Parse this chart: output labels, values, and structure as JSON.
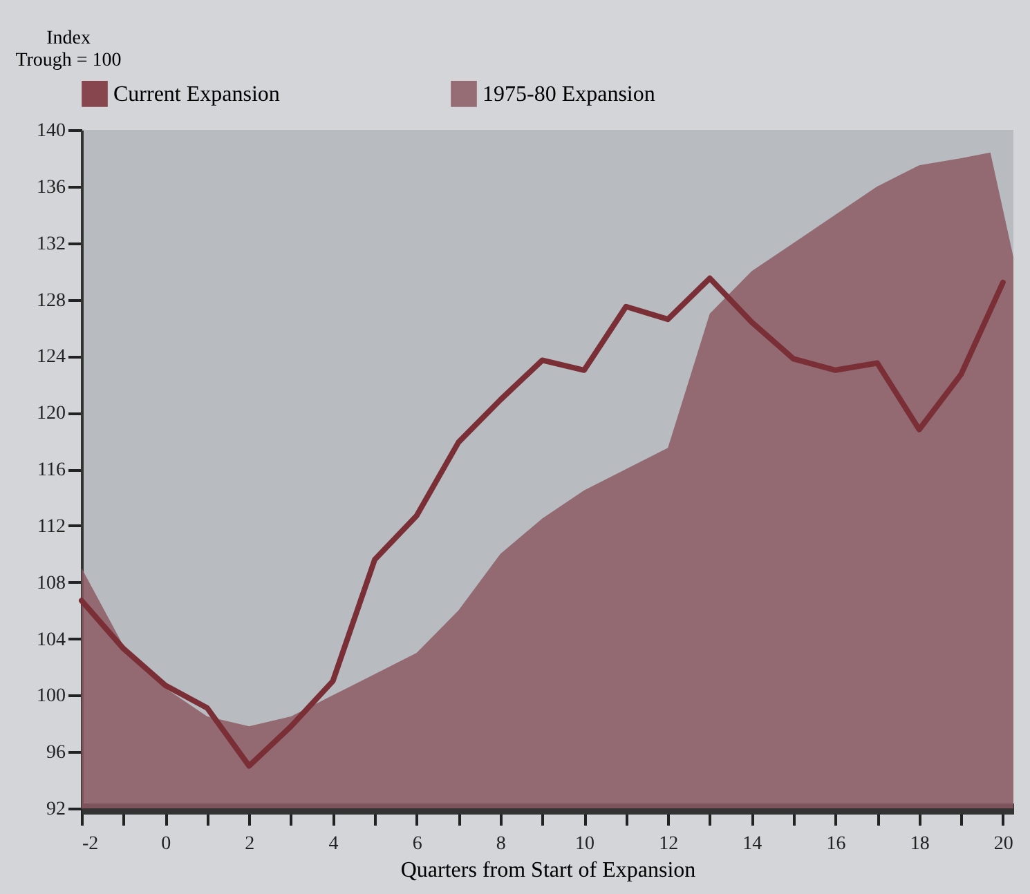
{
  "chart_data": {
    "type": "line",
    "xlabel": "Quarters from Start of Expansion",
    "ylabel": "Index\nTrough = 100",
    "x": [
      -2,
      -1,
      0,
      1,
      2,
      3,
      4,
      5,
      6,
      7,
      8,
      9,
      10,
      11,
      12,
      13,
      14,
      15,
      16,
      17,
      18,
      19,
      20
    ],
    "series": [
      {
        "name": "Current Expansion",
        "color": "#7a2e35",
        "type": "line",
        "values": [
          106.7,
          103.3,
          100.7,
          99.1,
          95,
          97.8,
          101,
          109.6,
          112.7,
          117.9,
          120.9,
          123.7,
          123,
          127.5,
          126.6,
          129.5,
          126.4,
          123.8,
          123,
          123.5,
          118.8,
          122.7,
          129.2
        ]
      },
      {
        "name": "1975-80 Expansion",
        "color": "#8c5a64",
        "type": "area",
        "x": [
          -2,
          -1,
          0,
          1,
          2,
          3,
          4,
          5,
          6,
          7,
          8,
          9,
          10,
          11,
          12,
          13,
          14,
          15,
          16,
          17,
          18,
          19,
          19.7,
          20.25
        ],
        "values": [
          109,
          103.5,
          100.5,
          98.5,
          97.8,
          98.5,
          100,
          101.5,
          103,
          106,
          110,
          112.5,
          114.5,
          116,
          117.5,
          127,
          130,
          132,
          134,
          136,
          137.5,
          138,
          138.4,
          131
        ]
      }
    ],
    "xlim": [
      -2,
      20.25
    ],
    "xticks": [
      -2,
      {
        "value": -1,
        "label": null
      },
      0,
      {
        "value": 1,
        "label": null
      },
      2,
      {
        "value": 3,
        "label": null
      },
      4,
      {
        "value": 5,
        "label": null
      },
      6,
      {
        "value": 7,
        "label": null
      },
      8,
      {
        "value": 9,
        "label": null
      },
      10,
      {
        "value": 11,
        "label": null
      },
      12,
      {
        "value": 13,
        "label": null
      },
      14,
      {
        "value": 15,
        "label": null
      },
      16,
      {
        "value": 17,
        "label": null
      },
      18,
      {
        "value": 19,
        "label": null
      },
      20
    ],
    "ylim": [
      92,
      140
    ],
    "yticks": [
      92,
      96,
      100,
      104,
      108,
      112,
      116,
      120,
      124,
      128,
      132,
      136,
      140
    ],
    "grid": false,
    "legend": "top"
  }
}
